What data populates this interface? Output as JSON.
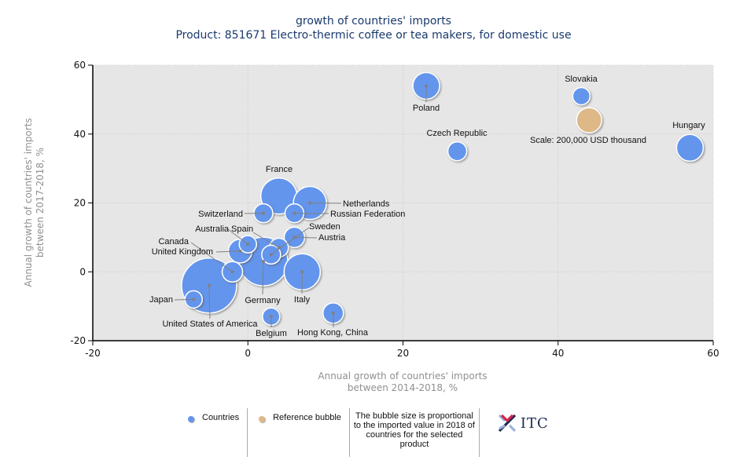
{
  "chart_data": {
    "type": "scatter",
    "subtype": "bubble",
    "title": "growth of countries' imports",
    "subtitle": "Product: 851671 Electro-thermic coffee or tea makers, for domestic use",
    "xlabel": [
      "Annual growth of countries' imports",
      "between 2014-2018, %"
    ],
    "ylabel": [
      "Annual growth of countries' imports",
      "between 2017-2018, %"
    ],
    "xlim": [
      -20,
      60
    ],
    "ylim": [
      -20,
      60
    ],
    "xticks": [
      -20,
      0,
      20,
      40,
      60
    ],
    "yticks": [
      -20,
      0,
      20,
      40,
      60
    ],
    "grid": true,
    "legend_position": "bottom",
    "size_unit": "imported value in 2018, USD thousand (relative)",
    "series": [
      {
        "name": "Countries",
        "color": "#6495ed",
        "points": [
          {
            "label": "United States of America",
            "x": -5,
            "y": -4,
            "size": 1225
          },
          {
            "label": "Germany",
            "x": 2,
            "y": 3,
            "size": 961
          },
          {
            "label": "France",
            "x": 4,
            "y": 22,
            "size": 529
          },
          {
            "label": "Italy",
            "x": 7,
            "y": 0,
            "size": 529
          },
          {
            "label": "Netherlands",
            "x": 8,
            "y": 20,
            "size": 441
          },
          {
            "label": "United Kingdom",
            "x": -1,
            "y": 6,
            "size": 225
          },
          {
            "label": "Poland",
            "x": 23,
            "y": 54,
            "size": 289
          },
          {
            "label": "Hungary",
            "x": 57,
            "y": 36,
            "size": 289
          },
          {
            "label": "Canada",
            "x": -2,
            "y": 0,
            "size": 169
          },
          {
            "label": "Austria",
            "x": 6,
            "y": 10,
            "size": 169
          },
          {
            "label": "Hong Kong, China",
            "x": 11,
            "y": -12,
            "size": 169
          },
          {
            "label": "Spain",
            "x": 4,
            "y": 7,
            "size": 144
          },
          {
            "label": "Sweden",
            "x": 3,
            "y": 5,
            "size": 144
          },
          {
            "label": "Russian Federation",
            "x": 6,
            "y": 17,
            "size": 144
          },
          {
            "label": "Switzerland",
            "x": 2,
            "y": 17,
            "size": 144
          },
          {
            "label": "Czech Republic",
            "x": 27,
            "y": 35,
            "size": 144
          },
          {
            "label": "Australia",
            "x": 0,
            "y": 8,
            "size": 121
          },
          {
            "label": "Japan",
            "x": -7,
            "y": -8,
            "size": 121
          },
          {
            "label": "Belgium",
            "x": 3,
            "y": -13,
            "size": 121
          },
          {
            "label": "Slovakia",
            "x": 43,
            "y": 51,
            "size": 121
          }
        ]
      },
      {
        "name": "Reference bubble",
        "color": "#deb887",
        "points": [
          {
            "label": "Scale: 200,000 USD thousand",
            "x": 44,
            "y": 44,
            "size": 256
          }
        ]
      }
    ]
  },
  "legend": {
    "countries_label": "Countries",
    "reference_label": "Reference bubble",
    "note": "The bubble size is proportional to the imported value in 2018 of countries for the selected product",
    "countries_color": "#6495ed",
    "reference_color": "#deb887"
  },
  "logo": {
    "text": "ITC"
  }
}
